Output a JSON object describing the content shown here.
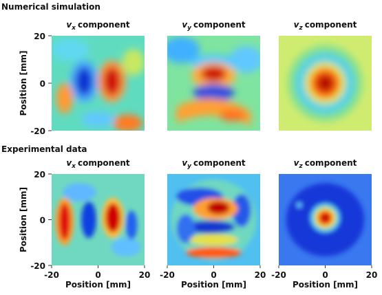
{
  "sections": [
    {
      "heading": "Numerical simulation",
      "panels": [
        {
          "symbol": "v",
          "subscript": "x",
          "text": "component"
        },
        {
          "symbol": "v",
          "subscript": "y",
          "text": "component"
        },
        {
          "symbol": "v",
          "subscript": "z",
          "text": "component"
        }
      ]
    },
    {
      "heading": "Experimental data",
      "panels": [
        {
          "symbol": "v",
          "subscript": "x",
          "text": "component"
        },
        {
          "symbol": "v",
          "subscript": "y",
          "text": "component"
        },
        {
          "symbol": "v",
          "subscript": "z",
          "text": "component"
        }
      ]
    }
  ],
  "y_axis": {
    "label": "Position [mm]",
    "lim": [
      -20,
      20
    ],
    "ticks": [
      20,
      0,
      -20
    ]
  },
  "x_axis": {
    "label": "Position [mm]",
    "lim": [
      -20,
      20
    ],
    "ticks": [
      -20,
      0,
      20
    ]
  }
}
